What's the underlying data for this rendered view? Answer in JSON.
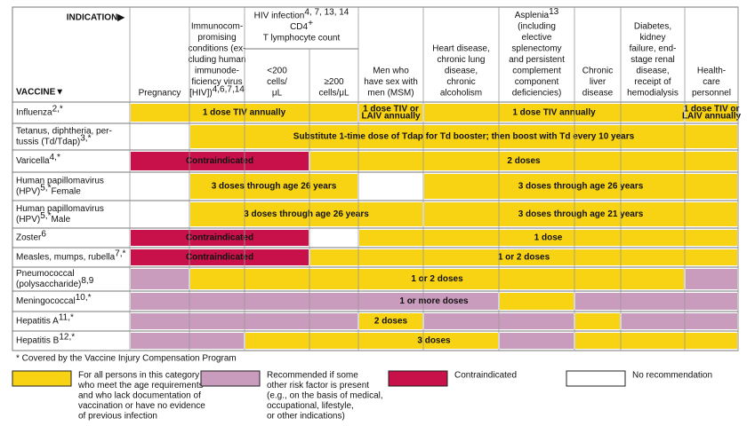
{
  "header": {
    "corner_top": "INDICATION▶",
    "corner_bottom": "VACCINE▼",
    "hiv_group": [
      [
        {
          "text": "HIV infection"
        },
        {
          "sup": "4, 7, 13, 14"
        }
      ],
      [
        {
          "text": "CD4"
        },
        {
          "sup": "+"
        }
      ],
      [
        {
          "text": "T lymphocyte count"
        }
      ]
    ],
    "columns": [
      [
        [
          {
            "text": "Pregnancy"
          }
        ]
      ],
      [
        [
          {
            "text": "Immunocom-"
          }
        ],
        [
          {
            "text": "promising"
          }
        ],
        [
          {
            "text": "conditions (ex-"
          }
        ],
        [
          {
            "text": "cluding human"
          }
        ],
        [
          {
            "text": "immunode-"
          }
        ],
        [
          {
            "text": "ficiency virus"
          }
        ],
        [
          {
            "text": "[HIV])"
          },
          {
            "sup": "4,6,7,14"
          }
        ]
      ],
      [
        [
          {
            "text": "<200"
          }
        ],
        [
          {
            "text": "cells/"
          }
        ],
        [
          {
            "text": "μL"
          }
        ]
      ],
      [
        [
          {
            "text": "≥200"
          }
        ],
        [
          {
            "text": "cells/μL"
          }
        ]
      ],
      [
        [
          {
            "text": "Men who"
          }
        ],
        [
          {
            "text": "have sex with"
          }
        ],
        [
          {
            "text": "men (MSM)"
          }
        ]
      ],
      [
        [
          {
            "text": "Heart disease,"
          }
        ],
        [
          {
            "text": "chronic lung"
          }
        ],
        [
          {
            "text": "disease,"
          }
        ],
        [
          {
            "text": "chronic"
          }
        ],
        [
          {
            "text": "alcoholism"
          }
        ]
      ],
      [
        [
          {
            "text": "Asplenia"
          },
          {
            "sup": "13"
          }
        ],
        [
          {
            "text": "(including"
          }
        ],
        [
          {
            "text": "elective"
          }
        ],
        [
          {
            "text": "splenectomy"
          }
        ],
        [
          {
            "text": "and persistent"
          }
        ],
        [
          {
            "text": "complement"
          }
        ],
        [
          {
            "text": "component"
          }
        ],
        [
          {
            "text": "deficiencies)"
          }
        ]
      ],
      [
        [
          {
            "text": "Chronic"
          }
        ],
        [
          {
            "text": "liver"
          }
        ],
        [
          {
            "text": "disease"
          }
        ]
      ],
      [
        [
          {
            "text": "Diabetes,"
          }
        ],
        [
          {
            "text": "kidney"
          }
        ],
        [
          {
            "text": "failure, end-"
          }
        ],
        [
          {
            "text": "stage renal"
          }
        ],
        [
          {
            "text": "disease,"
          }
        ],
        [
          {
            "text": "receipt of"
          }
        ],
        [
          {
            "text": "hemodialysis"
          }
        ]
      ],
      [
        [
          {
            "text": "Health-"
          }
        ],
        [
          {
            "text": "care"
          }
        ],
        [
          {
            "text": "personnel"
          }
        ]
      ]
    ]
  },
  "colors": {
    "yellow": "#f8d314",
    "purple": "#c99bbd",
    "red": "#c8104b",
    "none": "#ffffff"
  },
  "rows": [
    {
      "name": [
        [
          {
            "text": "Influenza"
          },
          {
            "sup": "2,*"
          }
        ]
      ],
      "segments": [
        {
          "cols": [
            0,
            3
          ],
          "fill": "yellow",
          "label": [
            "1 dose TIV annually"
          ]
        },
        {
          "cols": [
            4,
            4
          ],
          "fill": "yellow",
          "label": [
            "1 dose TIV or",
            "LAIV annually"
          ]
        },
        {
          "cols": [
            5,
            8
          ],
          "fill": "yellow",
          "label": [
            "1 dose TIV annually"
          ]
        },
        {
          "cols": [
            9,
            9
          ],
          "fill": "yellow",
          "label": [
            "1 dose TIV or",
            "LAIV annually"
          ]
        }
      ]
    },
    {
      "name": [
        [
          {
            "text": "Tetanus, diphtheria, per-"
          }
        ],
        [
          {
            "text": "tussis (Td/Tdap)"
          },
          {
            "sup": "3,*"
          }
        ]
      ],
      "segments": [
        {
          "cols": [
            1,
            9
          ],
          "fill": "yellow",
          "label": [
            "Substitute 1-time dose of Tdap for Td booster; then boost with Td every 10 years"
          ]
        }
      ]
    },
    {
      "name": [
        [
          {
            "text": "Varicella"
          },
          {
            "sup": "4,*"
          }
        ]
      ],
      "segments": [
        {
          "cols": [
            0,
            2
          ],
          "fill": "red",
          "label": [
            "Contraindicated"
          ]
        },
        {
          "cols": [
            3,
            9
          ],
          "fill": "yellow",
          "label": [
            "2 doses"
          ]
        }
      ]
    },
    {
      "name": [
        [
          {
            "text": "Human papillomavirus"
          }
        ],
        [
          {
            "text": "(HPV)"
          },
          {
            "sup": "5,*"
          },
          {
            "text": " Female"
          }
        ]
      ],
      "segments": [
        {
          "cols": [
            1,
            3
          ],
          "fill": "yellow",
          "label": [
            "3 doses through age 26 years"
          ]
        },
        {
          "cols": [
            5,
            9
          ],
          "fill": "yellow",
          "label": [
            "3 doses through age 26 years"
          ]
        }
      ]
    },
    {
      "name": [
        [
          {
            "text": "Human papillomavirus"
          }
        ],
        [
          {
            "text": "(HPV)"
          },
          {
            "sup": "5,*"
          },
          {
            "text": " Male"
          }
        ]
      ],
      "segments": [
        {
          "cols": [
            1,
            4
          ],
          "fill": "yellow",
          "label": [
            "3 doses through age 26 years"
          ]
        },
        {
          "cols": [
            5,
            9
          ],
          "fill": "yellow",
          "label": [
            "3 doses through age 21 years"
          ]
        }
      ]
    },
    {
      "name": [
        [
          {
            "text": "Zoster"
          },
          {
            "sup": "6"
          }
        ]
      ],
      "segments": [
        {
          "cols": [
            0,
            2
          ],
          "fill": "red",
          "label": [
            "Contraindicated"
          ]
        },
        {
          "cols": [
            4,
            9
          ],
          "fill": "yellow",
          "label": [
            "1 dose"
          ]
        }
      ]
    },
    {
      "name": [
        [
          {
            "text": "Measles, mumps, rubella"
          },
          {
            "sup": "7,*"
          }
        ]
      ],
      "segments": [
        {
          "cols": [
            0,
            2
          ],
          "fill": "red",
          "label": [
            "Contraindicated"
          ]
        },
        {
          "cols": [
            3,
            9
          ],
          "fill": "yellow",
          "label": [
            "1 or 2 doses"
          ]
        }
      ]
    },
    {
      "name": [
        [
          {
            "text": "Pneumococcal"
          }
        ],
        [
          {
            "text": "(polysaccharide)"
          },
          {
            "sup": "8,9"
          }
        ]
      ],
      "segments": [
        {
          "cols": [
            0,
            0
          ],
          "fill": "purple"
        },
        {
          "cols": [
            1,
            8
          ],
          "fill": "yellow",
          "label": [
            "1 or 2 doses"
          ]
        },
        {
          "cols": [
            9,
            9
          ],
          "fill": "purple"
        }
      ]
    },
    {
      "name": [
        [
          {
            "text": "Meningococcal"
          },
          {
            "sup": "10,*"
          }
        ]
      ],
      "label": "1 or more doses",
      "segments": [
        {
          "cols": [
            0,
            5
          ],
          "fill": "purple"
        },
        {
          "cols": [
            6,
            6
          ],
          "fill": "yellow"
        },
        {
          "cols": [
            7,
            9
          ],
          "fill": "purple"
        }
      ]
    },
    {
      "name": [
        [
          {
            "text": "Hepatitis A"
          },
          {
            "sup": "11,*"
          }
        ]
      ],
      "segments": [
        {
          "cols": [
            0,
            3
          ],
          "fill": "purple"
        },
        {
          "cols": [
            4,
            4
          ],
          "fill": "yellow",
          "label": [
            "2 doses"
          ]
        },
        {
          "cols": [
            5,
            6
          ],
          "fill": "purple"
        },
        {
          "cols": [
            7,
            7
          ],
          "fill": "yellow"
        },
        {
          "cols": [
            8,
            9
          ],
          "fill": "purple"
        }
      ]
    },
    {
      "name": [
        [
          {
            "text": "Hepatitis B"
          },
          {
            "sup": "12,*"
          }
        ]
      ],
      "label": "3 doses",
      "segments": [
        {
          "cols": [
            0,
            1
          ],
          "fill": "purple"
        },
        {
          "cols": [
            2,
            5
          ],
          "fill": "yellow"
        },
        {
          "cols": [
            6,
            6
          ],
          "fill": "purple"
        },
        {
          "cols": [
            7,
            9
          ],
          "fill": "yellow"
        }
      ]
    }
  ],
  "footnote": "* Covered by the Vaccine Injury Compensation Program",
  "legend": [
    {
      "fill": "yellow",
      "text": [
        "For all persons in this category",
        "who meet the age requirements",
        "and who lack documentation of",
        "vaccination or have no evidence",
        "of previous infection"
      ]
    },
    {
      "fill": "purple",
      "text": [
        "Recommended if some",
        "other risk factor is present",
        "(e.g., on the basis of medical,",
        "occupational, lifestyle,",
        "or other indications)"
      ]
    },
    {
      "fill": "red",
      "text": [
        "Contraindicated"
      ]
    },
    {
      "fill": "none",
      "text": [
        "No recommendation"
      ]
    }
  ]
}
